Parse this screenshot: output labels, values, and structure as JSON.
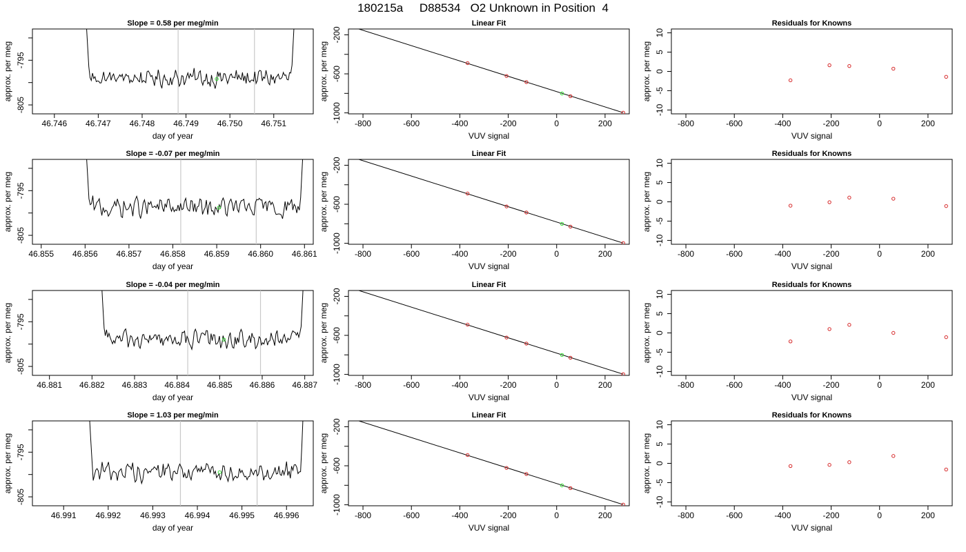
{
  "page_title": "180215a     D88534   O2 Unknown in Position  4",
  "colors": {
    "line": "#000000",
    "known_points": "#d62728",
    "unknown_point": "#33dd33",
    "cutoff_lines": "#c8c8c8"
  },
  "chart_data": [
    {
      "panel": "time-series",
      "row": 1,
      "type": "line",
      "title": "Slope =  0.58  per meg/min",
      "xlabel": "day of year",
      "ylabel": "approx. per meg",
      "x_ticks": [
        "46.746",
        "46.747",
        "46.748",
        "46.749",
        "46.750",
        "46.751"
      ],
      "y_ticks": [
        "-795",
        "-805"
      ],
      "xlim": [
        46.7455,
        46.7519
      ],
      "ylim": [
        -807,
        -788
      ],
      "series_start": 46.7467,
      "series_end": 46.7515,
      "rise_end": 46.7468,
      "drop_start": 46.7514,
      "series_mean": -799.0,
      "series_amplitude": 1.5,
      "cutoff_lines": [
        46.74882,
        46.75056
      ],
      "unknown_point": {
        "x": 46.7497,
        "y": -799.2
      }
    },
    {
      "panel": "linear-fit",
      "row": 1,
      "type": "scatter",
      "title": "Linear Fit",
      "xlabel": "VUV signal",
      "ylabel": "approx. per meg",
      "x_ticks": [
        -800,
        -600,
        -400,
        -200,
        0,
        200
      ],
      "y_ticks": [
        -200,
        -600,
        -1000
      ],
      "xlim": [
        -860,
        300
      ],
      "ylim": [
        -1010,
        -140
      ],
      "fit_line": [
        {
          "x": -830,
          "y": -130
        },
        {
          "x": 275,
          "y": -998
        }
      ],
      "known_points": [
        {
          "x": -368,
          "y": -490
        },
        {
          "x": -207,
          "y": -622
        },
        {
          "x": -125,
          "y": -684
        },
        {
          "x": 57,
          "y": -829
        },
        {
          "x": 275,
          "y": -998
        }
      ],
      "unknown_point": {
        "x": 22,
        "y": -801
      }
    },
    {
      "panel": "residuals",
      "row": 1,
      "type": "scatter",
      "title": "Residuals for Knowns",
      "xlabel": "VUV signal",
      "ylabel": "approx. per meg",
      "x_ticks": [
        -800,
        -600,
        -400,
        -200,
        0,
        200
      ],
      "y_ticks": [
        10,
        5,
        0,
        -5,
        -10
      ],
      "xlim": [
        -860,
        300
      ],
      "ylim": [
        -11,
        11
      ],
      "points": [
        {
          "x": -368,
          "y": -2.3
        },
        {
          "x": -207,
          "y": 1.6
        },
        {
          "x": -125,
          "y": 1.4
        },
        {
          "x": 57,
          "y": 0.7
        },
        {
          "x": 275,
          "y": -1.4
        }
      ]
    },
    {
      "panel": "time-series",
      "row": 2,
      "type": "line",
      "title": "Slope =  -0.07  per meg/min",
      "xlabel": "day of year",
      "ylabel": "approx. per meg",
      "x_ticks": [
        "46.855",
        "46.856",
        "46.857",
        "46.858",
        "46.859",
        "46.860",
        "46.861"
      ],
      "y_ticks": [
        "-795",
        "-805"
      ],
      "xlim": [
        46.8548,
        46.8612
      ],
      "ylim": [
        -807,
        -788
      ],
      "series_start": 46.856,
      "series_end": 46.861,
      "rise_end": 46.8561,
      "drop_start": 46.8609,
      "series_mean": -798.8,
      "series_amplitude": 1.8,
      "cutoff_lines": [
        46.85818,
        46.8599
      ],
      "unknown_point": {
        "x": 46.85905,
        "y": -798.8
      }
    },
    {
      "panel": "linear-fit",
      "row": 2,
      "type": "scatter",
      "title": "Linear Fit",
      "xlabel": "VUV signal",
      "ylabel": "approx. per meg",
      "x_ticks": [
        -800,
        -600,
        -400,
        -200,
        0,
        200
      ],
      "y_ticks": [
        -200,
        -600,
        -1000
      ],
      "xlim": [
        -860,
        300
      ],
      "ylim": [
        -1010,
        -140
      ],
      "fit_line": [
        {
          "x": -830,
          "y": -130
        },
        {
          "x": 275,
          "y": -998
        }
      ],
      "known_points": [
        {
          "x": -368,
          "y": -490
        },
        {
          "x": -207,
          "y": -622
        },
        {
          "x": -125,
          "y": -684
        },
        {
          "x": 57,
          "y": -829
        },
        {
          "x": 275,
          "y": -998
        }
      ],
      "unknown_point": {
        "x": 22,
        "y": -801
      }
    },
    {
      "panel": "residuals",
      "row": 2,
      "type": "scatter",
      "title": "Residuals for Knowns",
      "xlabel": "VUV signal",
      "ylabel": "approx. per meg",
      "x_ticks": [
        -800,
        -600,
        -400,
        -200,
        0,
        200
      ],
      "y_ticks": [
        10,
        5,
        0,
        -5,
        -10
      ],
      "xlim": [
        -860,
        300
      ],
      "ylim": [
        -11,
        11
      ],
      "points": [
        {
          "x": -368,
          "y": -1.0
        },
        {
          "x": -207,
          "y": -0.1
        },
        {
          "x": -125,
          "y": 1.1
        },
        {
          "x": 57,
          "y": 0.8
        },
        {
          "x": 275,
          "y": -1.1
        }
      ]
    },
    {
      "panel": "time-series",
      "row": 3,
      "type": "line",
      "title": "Slope =  -0.04  per meg/min",
      "xlabel": "day of year",
      "ylabel": "approx. per meg",
      "x_ticks": [
        "46.881",
        "46.882",
        "46.883",
        "46.884",
        "46.885",
        "46.886",
        "46.887"
      ],
      "y_ticks": [
        "-795",
        "-805"
      ],
      "xlim": [
        46.8806,
        46.8872
      ],
      "ylim": [
        -807,
        -788
      ],
      "series_start": 46.8822,
      "series_end": 46.887,
      "rise_end": 46.8823,
      "drop_start": 46.8869,
      "series_mean": -799.0,
      "series_amplitude": 1.6,
      "cutoff_lines": [
        46.88425,
        46.88596
      ],
      "unknown_point": {
        "x": 46.8851,
        "y": -799.0
      }
    },
    {
      "panel": "linear-fit",
      "row": 3,
      "type": "scatter",
      "title": "Linear Fit",
      "xlabel": "VUV signal",
      "ylabel": "approx. per meg",
      "x_ticks": [
        -800,
        -600,
        -400,
        -200,
        0,
        200
      ],
      "y_ticks": [
        -200,
        -600,
        -1000
      ],
      "xlim": [
        -860,
        300
      ],
      "ylim": [
        -1010,
        -140
      ],
      "fit_line": [
        {
          "x": -830,
          "y": -130
        },
        {
          "x": 275,
          "y": -998
        }
      ],
      "known_points": [
        {
          "x": -368,
          "y": -490
        },
        {
          "x": -207,
          "y": -622
        },
        {
          "x": -125,
          "y": -684
        },
        {
          "x": 57,
          "y": -829
        },
        {
          "x": 275,
          "y": -998
        }
      ],
      "unknown_point": {
        "x": 22,
        "y": -801
      }
    },
    {
      "panel": "residuals",
      "row": 3,
      "type": "scatter",
      "title": "Residuals for Knowns",
      "xlabel": "VUV signal",
      "ylabel": "approx. per meg",
      "x_ticks": [
        -800,
        -600,
        -400,
        -200,
        0,
        200
      ],
      "y_ticks": [
        10,
        5,
        0,
        -5,
        -10
      ],
      "xlim": [
        -860,
        300
      ],
      "ylim": [
        -11,
        11
      ],
      "points": [
        {
          "x": -368,
          "y": -2.2
        },
        {
          "x": -207,
          "y": 1.0
        },
        {
          "x": -125,
          "y": 2.1
        },
        {
          "x": 57,
          "y": 0.0
        },
        {
          "x": 275,
          "y": -1.1
        }
      ]
    },
    {
      "panel": "time-series",
      "row": 4,
      "type": "line",
      "title": "Slope =  1.03  per meg/min",
      "xlabel": "day of year",
      "ylabel": "approx. per meg",
      "x_ticks": [
        "46.991",
        "46.992",
        "46.993",
        "46.994",
        "46.995",
        "46.996"
      ],
      "y_ticks": [
        "-795",
        "-805"
      ],
      "xlim": [
        46.9903,
        46.9966
      ],
      "ylim": [
        -807,
        -788
      ],
      "series_start": 46.99155,
      "series_end": 46.9964,
      "rise_end": 46.99165,
      "drop_start": 46.99632,
      "series_mean": -799.3,
      "series_amplitude": 1.7,
      "cutoff_lines": [
        46.99362,
        46.99534
      ],
      "unknown_point": {
        "x": 46.9945,
        "y": -799.5
      }
    },
    {
      "panel": "linear-fit",
      "row": 4,
      "type": "scatter",
      "title": "Linear Fit",
      "xlabel": "VUV signal",
      "ylabel": "approx. per meg",
      "x_ticks": [
        -800,
        -600,
        -400,
        -200,
        0,
        200
      ],
      "y_ticks": [
        -200,
        -600,
        -1000
      ],
      "xlim": [
        -860,
        300
      ],
      "ylim": [
        -1010,
        -140
      ],
      "fit_line": [
        {
          "x": -830,
          "y": -130
        },
        {
          "x": 275,
          "y": -998
        }
      ],
      "known_points": [
        {
          "x": -368,
          "y": -490
        },
        {
          "x": -207,
          "y": -622
        },
        {
          "x": -125,
          "y": -684
        },
        {
          "x": 57,
          "y": -829
        },
        {
          "x": 275,
          "y": -998
        }
      ],
      "unknown_point": {
        "x": 22,
        "y": -801
      }
    },
    {
      "panel": "residuals",
      "row": 4,
      "type": "scatter",
      "title": "Residuals for Knowns",
      "xlabel": "VUV signal",
      "ylabel": "approx. per meg",
      "x_ticks": [
        -800,
        -600,
        -400,
        -200,
        0,
        200
      ],
      "y_ticks": [
        10,
        5,
        0,
        -5,
        -10
      ],
      "xlim": [
        -860,
        300
      ],
      "ylim": [
        -11,
        11
      ],
      "points": [
        {
          "x": -368,
          "y": -0.7
        },
        {
          "x": -207,
          "y": -0.4
        },
        {
          "x": -125,
          "y": 0.3
        },
        {
          "x": 57,
          "y": 1.9
        },
        {
          "x": 275,
          "y": -1.6
        }
      ]
    }
  ]
}
